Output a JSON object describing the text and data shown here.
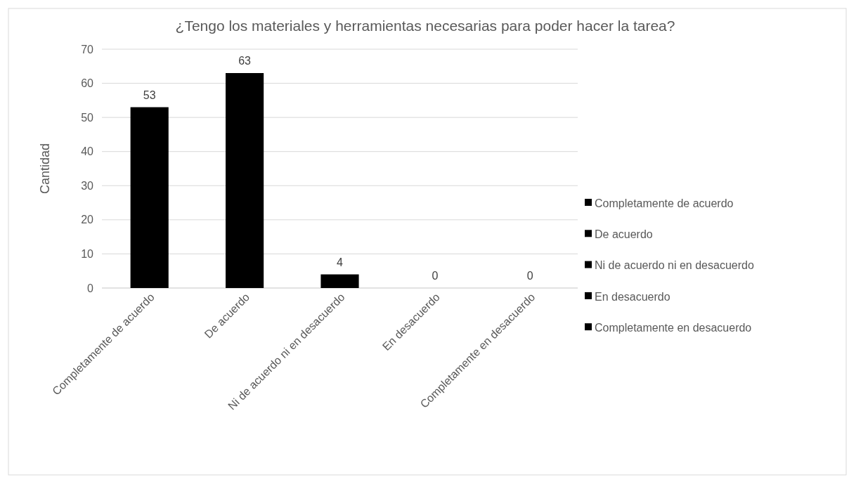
{
  "chart_data": {
    "type": "bar",
    "title": "¿Tengo los materiales y herramientas necesarias para poder hacer la tarea?",
    "ylabel": "Cantidad",
    "categories": [
      "Completamente de acuerdo",
      "De acuerdo",
      "Ni de acuerdo ni en desacuerdo",
      "En desacuerdo",
      "Completamente en desacuerdo"
    ],
    "series": [
      {
        "name": "Completamente de acuerdo",
        "color": "#000000",
        "values": [
          53,
          null,
          null,
          null,
          null
        ]
      },
      {
        "name": "De acuerdo",
        "color": "#000000",
        "values": [
          null,
          63,
          null,
          null,
          null
        ]
      },
      {
        "name": "Ni de acuerdo ni en desacuerdo",
        "color": "#000000",
        "values": [
          null,
          null,
          4,
          null,
          null
        ]
      },
      {
        "name": "En desacuerdo",
        "color": "#000000",
        "values": [
          null,
          null,
          null,
          0,
          null
        ]
      },
      {
        "name": "Completamente en desacuerdo",
        "color": "#000000",
        "values": [
          null,
          null,
          null,
          null,
          0
        ]
      }
    ],
    "stacked": true,
    "ylim": [
      0,
      70
    ],
    "yticks": [
      0,
      10,
      20,
      30,
      40,
      50,
      60,
      70
    ],
    "grid": "y",
    "legend": "right",
    "data_labels": true
  }
}
